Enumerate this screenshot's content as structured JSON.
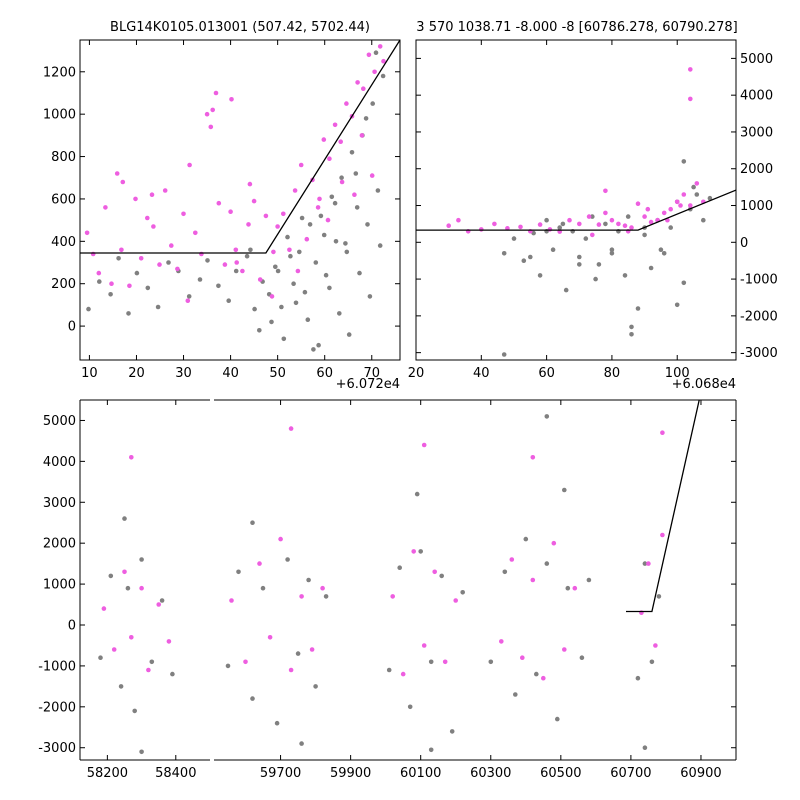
{
  "figure_title": "",
  "colors": {
    "gray": "#808080",
    "magenta": "#ee5ee0",
    "line": "#000000"
  },
  "chart_data": [
    {
      "id": "top-left",
      "type": "scatter",
      "title": "BLG14K0105.013001 (507.42, 5702.44)",
      "xlim": [
        8,
        76
      ],
      "ylim": [
        -160,
        1350
      ],
      "xticks": [
        10,
        20,
        30,
        40,
        50,
        60,
        70
      ],
      "yticks": [
        0,
        200,
        400,
        600,
        800,
        1000,
        1200
      ],
      "x_offset_label": "+6.072e4",
      "y_axis_side": "left",
      "model_line": {
        "x": [
          8,
          47.5,
          76
        ],
        "y": [
          345,
          345,
          1350
        ]
      },
      "series": [
        {
          "name": "gray",
          "x": [
            9.8,
            12.1,
            14.5,
            16.2,
            18.3,
            20.1,
            22.4,
            24.6,
            26.8,
            28.9,
            31.2,
            33.5,
            35.1,
            37.4,
            39.6,
            41.2,
            43.5,
            45.1,
            46.8,
            48.2,
            49.5,
            50.8,
            52.1,
            53.4,
            54.6,
            55.8,
            56.9,
            58.1,
            59.2,
            60.3,
            61.5,
            62.4,
            63.6,
            64.7,
            65.8,
            66.9,
            68.0,
            69.1,
            70.2,
            71.3,
            72.4,
            48.7,
            51.3,
            53.9,
            56.4,
            58.7,
            61.0,
            63.1,
            65.2,
            67.4,
            69.6,
            71.8,
            44.2,
            46.1,
            50.1,
            52.7,
            55.2,
            57.6,
            59.9,
            62.2,
            64.4,
            66.6,
            68.8,
            70.9
          ],
          "y": [
            80,
            210,
            150,
            320,
            60,
            250,
            180,
            90,
            300,
            260,
            140,
            220,
            310,
            190,
            120,
            260,
            330,
            80,
            210,
            150,
            280,
            90,
            420,
            200,
            350,
            160,
            480,
            300,
            520,
            240,
            610,
            400,
            700,
            350,
            820,
            560,
            900,
            480,
            1050,
            640,
            1180,
            20,
            -60,
            110,
            30,
            -90,
            180,
            60,
            -40,
            250,
            140,
            380,
            360,
            -20,
            260,
            330,
            510,
            -110,
            430,
            580,
            390,
            720,
            980,
            1290
          ]
        },
        {
          "name": "magenta",
          "x": [
            9.5,
            10.8,
            12.0,
            13.4,
            14.7,
            15.9,
            17.1,
            18.5,
            19.8,
            21.0,
            22.3,
            23.6,
            24.9,
            26.1,
            27.4,
            28.7,
            30.0,
            31.3,
            32.5,
            33.8,
            35.0,
            36.2,
            37.5,
            38.8,
            40.0,
            41.3,
            42.5,
            43.8,
            45.0,
            46.3,
            47.5,
            48.8,
            50.0,
            51.2,
            52.5,
            53.7,
            55.0,
            56.2,
            57.4,
            58.6,
            59.8,
            61.0,
            62.2,
            63.4,
            64.6,
            65.8,
            67.0,
            68.2,
            69.4,
            70.6,
            71.8,
            35.8,
            36.9,
            40.2,
            41.1,
            30.9,
            16.8,
            23.3,
            44.1,
            49.1,
            54.3,
            60.7,
            66.3,
            70.1,
            72.5,
            58.9,
            63.7,
            67.9
          ],
          "y": [
            440,
            340,
            250,
            560,
            200,
            720,
            680,
            190,
            600,
            320,
            510,
            470,
            290,
            640,
            380,
            270,
            530,
            760,
            440,
            340,
            1000,
            1020,
            580,
            290,
            540,
            300,
            260,
            480,
            590,
            220,
            520,
            140,
            470,
            530,
            360,
            640,
            760,
            410,
            690,
            560,
            880,
            790,
            950,
            870,
            1050,
            990,
            1150,
            1120,
            1280,
            1200,
            1320,
            940,
            1100,
            1070,
            360,
            120,
            360,
            620,
            670,
            350,
            260,
            500,
            620,
            710,
            1250,
            600,
            680,
            900
          ]
        }
      ]
    },
    {
      "id": "top-right",
      "type": "scatter",
      "title": "3 570 1038.71 -8.000 -8 [60786.278, 60790.278]",
      "xlim": [
        20,
        118
      ],
      "ylim": [
        -3200,
        5500
      ],
      "xticks": [
        20,
        40,
        60,
        80,
        100
      ],
      "yticks": [
        -3000,
        -2000,
        -1000,
        0,
        1000,
        2000,
        3000,
        4000,
        5000
      ],
      "x_offset_label": "+6.068e4",
      "y_axis_side": "right",
      "model_line": {
        "x": [
          20,
          88,
          118
        ],
        "y": [
          330,
          330,
          1420
        ]
      },
      "series": [
        {
          "name": "gray",
          "x": [
            47,
            50,
            53,
            56,
            58,
            60,
            62,
            64,
            66,
            68,
            70,
            72,
            74,
            76,
            78,
            80,
            82,
            84,
            86,
            88,
            90,
            92,
            94,
            96,
            98,
            100,
            102,
            104,
            106,
            108,
            55,
            65,
            75,
            85,
            95,
            105,
            60,
            70,
            80,
            90,
            100,
            110,
            86,
            102,
            47
          ],
          "y": [
            -300,
            100,
            -500,
            250,
            -900,
            600,
            -200,
            400,
            -1300,
            300,
            -400,
            100,
            700,
            -600,
            500,
            -200,
            300,
            -900,
            -2300,
            -1800,
            200,
            -700,
            600,
            -300,
            400,
            1100,
            -1100,
            900,
            1300,
            600,
            -400,
            500,
            -1000,
            700,
            -200,
            1500,
            300,
            -600,
            -300,
            400,
            -1700,
            1200,
            -2500,
            2200,
            -3050
          ]
        },
        {
          "name": "magenta",
          "x": [
            30,
            33,
            36,
            40,
            44,
            48,
            52,
            55,
            58,
            61,
            64,
            67,
            70,
            73,
            76,
            78,
            80,
            82,
            84,
            86,
            88,
            90,
            92,
            94,
            96,
            98,
            100,
            102,
            104,
            106,
            108,
            104,
            104,
            74,
            78,
            85,
            91,
            97,
            101
          ],
          "y": [
            450,
            600,
            300,
            350,
            500,
            380,
            420,
            300,
            480,
            350,
            290,
            600,
            500,
            700,
            480,
            1400,
            600,
            500,
            450,
            400,
            1050,
            700,
            550,
            600,
            800,
            900,
            1100,
            1300,
            4700,
            1600,
            1100,
            3900,
            1000,
            200,
            800,
            300,
            900,
            600,
            1000
          ]
        }
      ]
    },
    {
      "id": "bottom",
      "type": "scatter",
      "title": "",
      "xlim": [
        58120,
        61000
      ],
      "ylim": [
        -3300,
        5500
      ],
      "xticks": [
        58200,
        58400,
        59700,
        59900,
        60100,
        60300,
        60500,
        60700,
        60900
      ],
      "yticks": [
        -3000,
        -2000,
        -1000,
        0,
        1000,
        2000,
        3000,
        4000,
        5000
      ],
      "y_axis_side": "left",
      "segments": [
        [
          58120,
          58500
        ],
        [
          59510,
          61000
        ]
      ],
      "model_line": {
        "x": [
          60686,
          60760,
          60895
        ],
        "y": [
          330,
          330,
          5500
        ]
      },
      "series": [
        {
          "name": "gray",
          "x": [
            58180,
            58210,
            58240,
            58260,
            58280,
            58300,
            58330,
            58360,
            58390,
            59550,
            59580,
            59620,
            59650,
            59690,
            59720,
            59750,
            59780,
            59800,
            59830,
            60010,
            60040,
            60070,
            60100,
            60130,
            60160,
            60190,
            60220,
            60300,
            60340,
            60370,
            60400,
            60430,
            60460,
            60490,
            60520,
            60560,
            60580,
            60720,
            60740,
            60760,
            60780,
            58300,
            59760,
            60130,
            60460,
            58250,
            59620,
            60090,
            60510,
            60740
          ],
          "y": [
            -800,
            1200,
            -1500,
            900,
            -2100,
            1600,
            -900,
            600,
            -1200,
            -1000,
            1300,
            -1800,
            900,
            -2400,
            1600,
            -700,
            1100,
            -1500,
            700,
            -1100,
            1400,
            -2000,
            1800,
            -900,
            1200,
            -2600,
            800,
            -900,
            1300,
            -1700,
            2100,
            -1200,
            1500,
            -2300,
            900,
            -800,
            1100,
            -1300,
            1500,
            -900,
            700,
            -3100,
            -2900,
            -3050,
            5100,
            2600,
            2500,
            3200,
            3300,
            -3000
          ]
        },
        {
          "name": "magenta",
          "x": [
            58190,
            58220,
            58250,
            58270,
            58300,
            58320,
            58350,
            58380,
            59560,
            59600,
            59640,
            59670,
            59700,
            59730,
            59760,
            59790,
            59820,
            60020,
            60050,
            60080,
            60110,
            60140,
            60170,
            60200,
            60330,
            60360,
            60390,
            60420,
            60450,
            60480,
            60510,
            60540,
            60730,
            60750,
            60770,
            60790,
            58270,
            59730,
            60110,
            60420,
            60790
          ],
          "y": [
            400,
            -600,
            1300,
            -300,
            900,
            -1100,
            500,
            -400,
            600,
            -900,
            1500,
            -300,
            2100,
            -1100,
            700,
            -600,
            900,
            700,
            -1200,
            1800,
            -500,
            1300,
            -900,
            600,
            -400,
            1600,
            -800,
            1100,
            -1300,
            2000,
            -600,
            900,
            300,
            1500,
            -500,
            2200,
            4100,
            4800,
            4400,
            4100,
            4700
          ]
        }
      ]
    }
  ]
}
